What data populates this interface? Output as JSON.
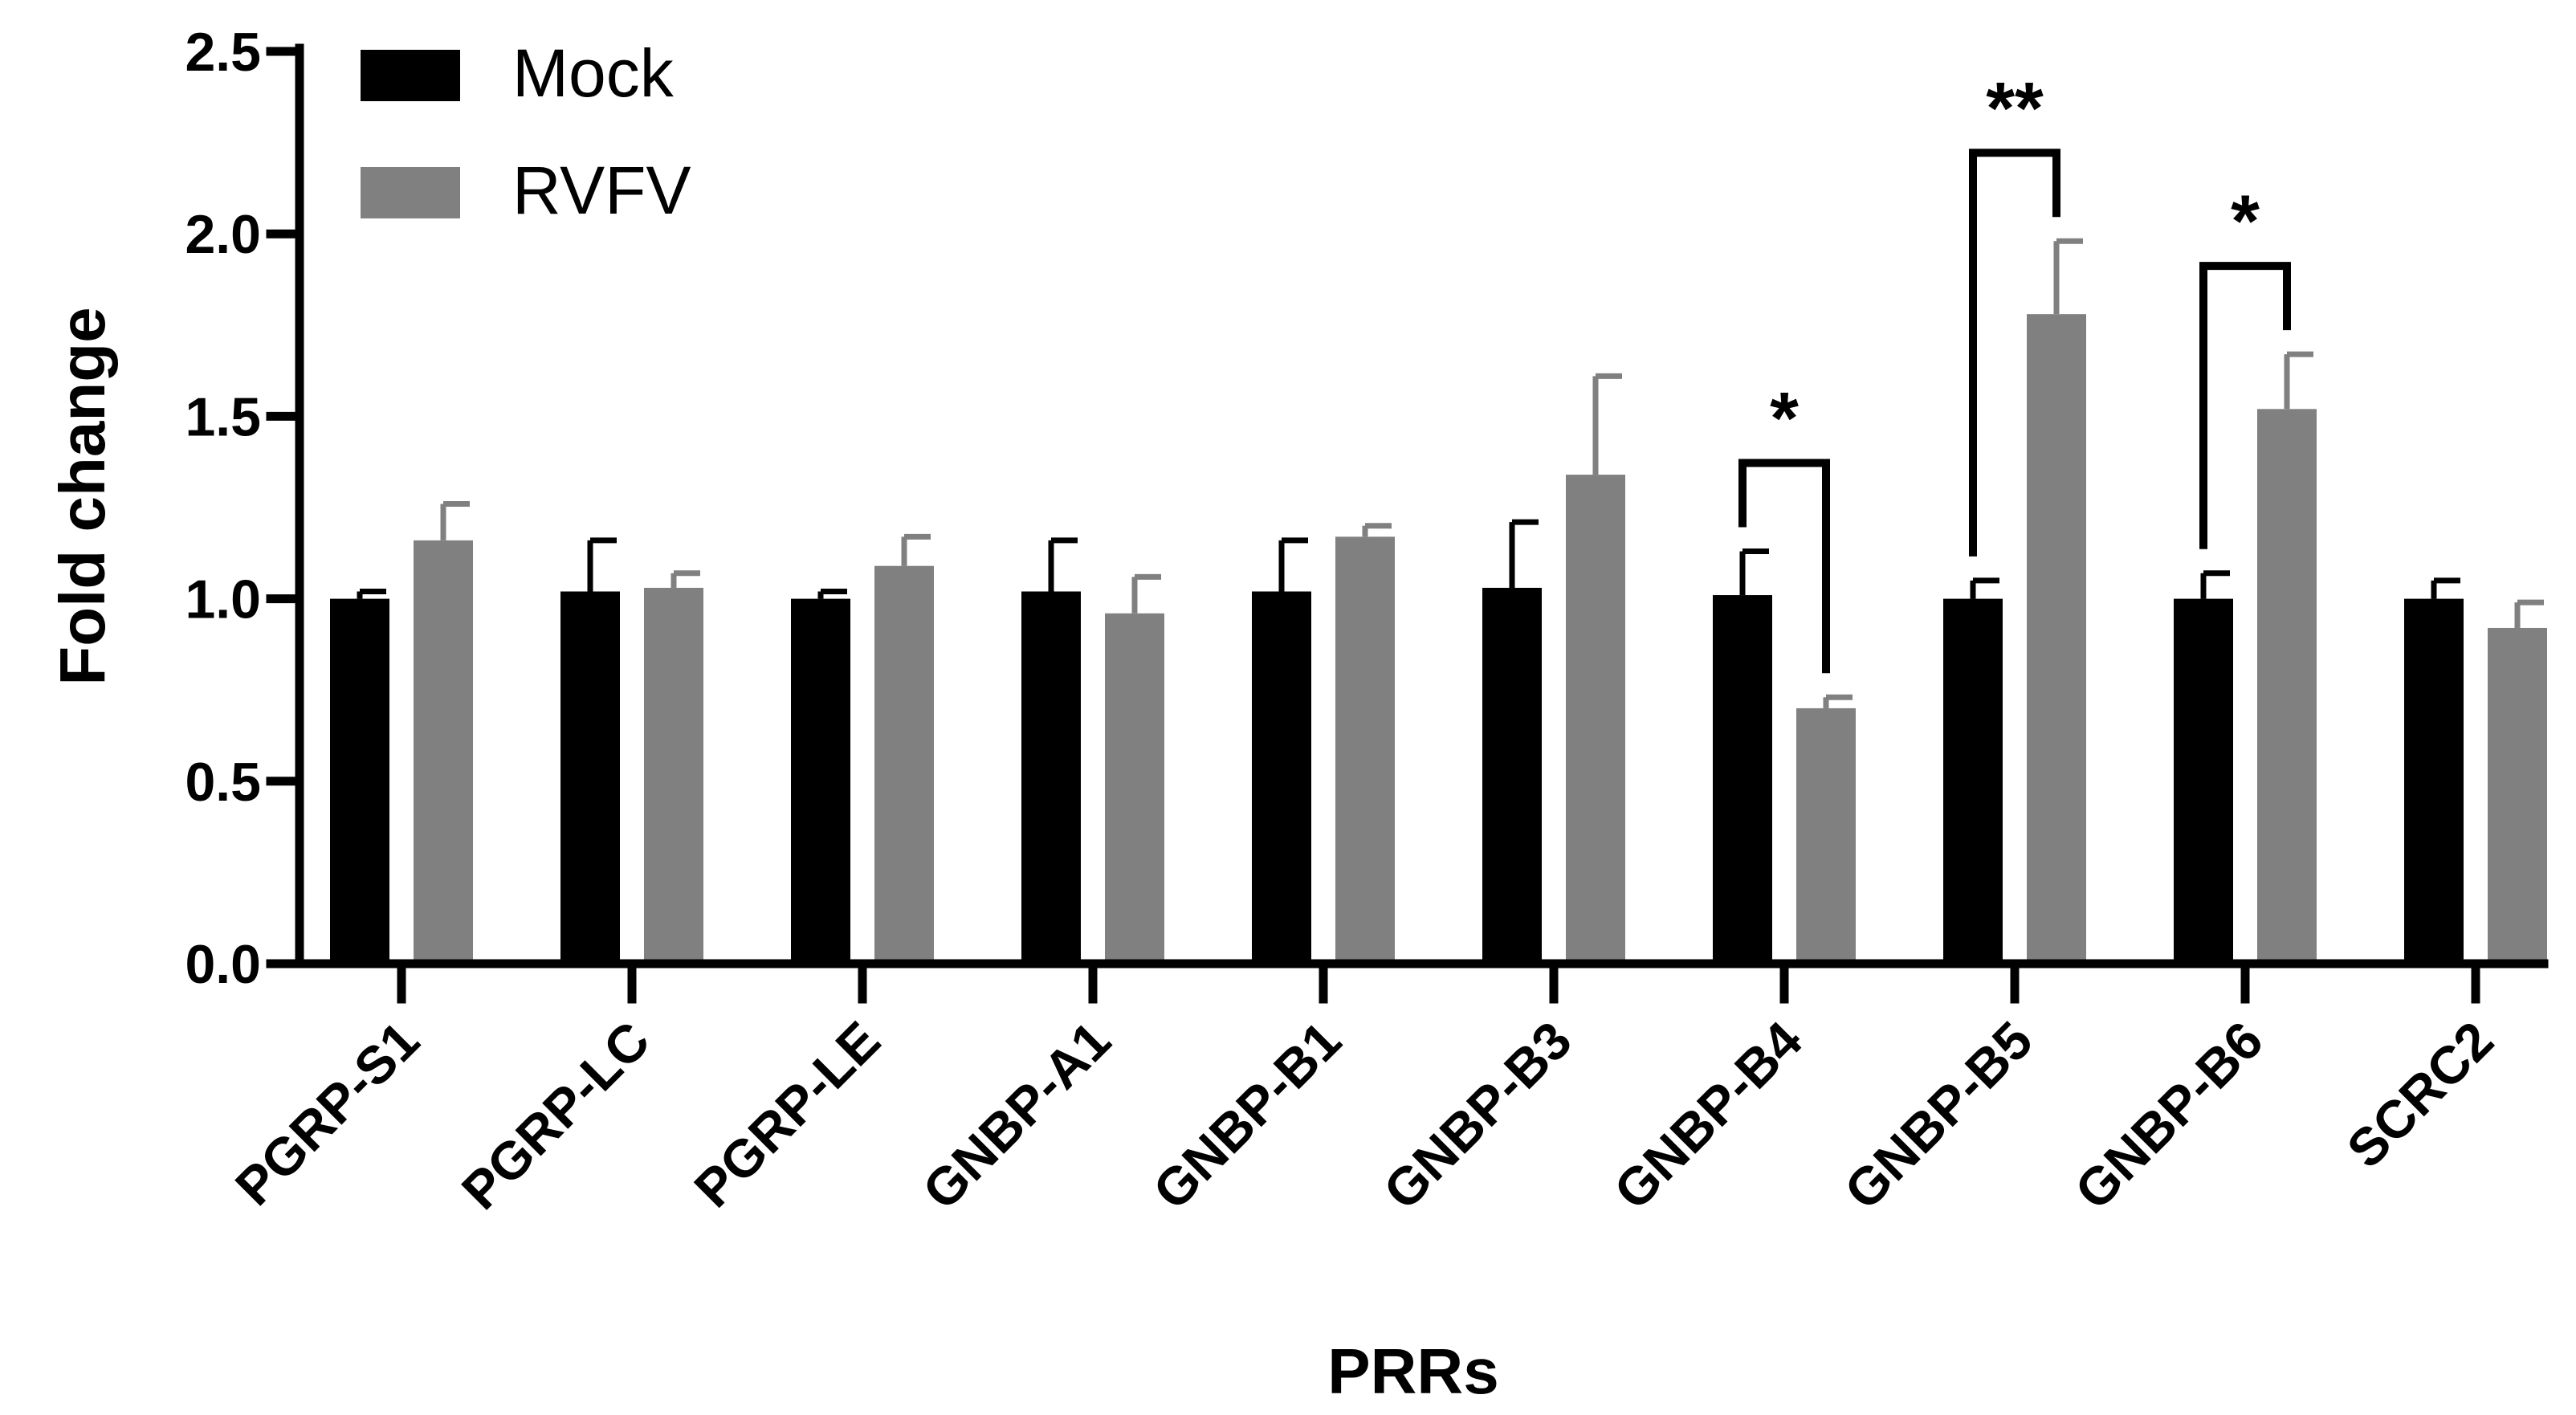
{
  "chart_data": {
    "type": "bar",
    "title": "",
    "xlabel": "PRRs",
    "ylabel": "Fold change",
    "ylim": [
      0,
      2.5
    ],
    "yticks": [
      "0.0",
      "0.5",
      "1.0",
      "1.5",
      "2.0",
      "2.5"
    ],
    "categories": [
      "PGRP-S1",
      "PGRP-LC",
      "PGRP-LE",
      "GNBP-A1",
      "GNBP-B1",
      "GNBP-B3",
      "GNBP-B4",
      "GNBP-B5",
      "GNBP-B6",
      "SCRC2"
    ],
    "series": [
      {
        "name": "Mock",
        "color": "#000000",
        "values": [
          1.0,
          1.02,
          1.0,
          1.02,
          1.02,
          1.03,
          1.01,
          1.0,
          1.0,
          1.0
        ],
        "errors": [
          0.02,
          0.14,
          0.02,
          0.14,
          0.14,
          0.18,
          0.12,
          0.05,
          0.07,
          0.05
        ]
      },
      {
        "name": "RVFV",
        "color": "#808080",
        "values": [
          1.16,
          1.03,
          1.09,
          0.96,
          1.17,
          1.34,
          0.7,
          1.78,
          1.52,
          0.92
        ],
        "errors": [
          0.1,
          0.04,
          0.08,
          0.1,
          0.03,
          0.27,
          0.03,
          0.2,
          0.15,
          0.07
        ]
      }
    ],
    "legend": "top-left",
    "significance": [
      {
        "category": "GNBP-B4",
        "label": "*"
      },
      {
        "category": "GNBP-B5",
        "label": "**"
      },
      {
        "category": "GNBP-B6",
        "label": "*"
      }
    ]
  }
}
